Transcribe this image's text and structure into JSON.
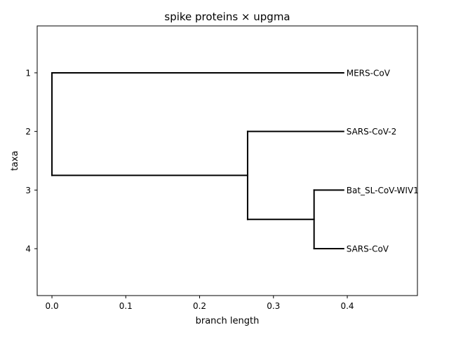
{
  "chart_data": {
    "type": "dendrogram",
    "title": "spike proteins × upgma",
    "xlabel": "branch length",
    "ylabel": "taxa",
    "xlim": [
      -0.02,
      0.495
    ],
    "ylim": [
      4.8,
      0.2
    ],
    "x_ticks": [
      0.0,
      0.1,
      0.2,
      0.3,
      0.4
    ],
    "x_tick_labels": [
      "0.0",
      "0.1",
      "0.2",
      "0.3",
      "0.4"
    ],
    "y_ticks": [
      1,
      2,
      3,
      4
    ],
    "y_tick_labels": [
      "1",
      "2",
      "3",
      "4"
    ],
    "grid": false,
    "legend": "none",
    "leaves": [
      {
        "name": "MERS-CoV",
        "y": 1,
        "x": 0.395
      },
      {
        "name": "SARS-CoV-2",
        "y": 2,
        "x": 0.395
      },
      {
        "name": "Bat_SL-CoV-WIV1",
        "y": 3,
        "x": 0.395
      },
      {
        "name": "SARS-CoV",
        "y": 4,
        "x": 0.395
      }
    ],
    "segments": [
      {
        "x1": 0.0,
        "y1": 1,
        "x2": 0.395,
        "y2": 1
      },
      {
        "x1": 0.0,
        "y1": 1,
        "x2": 0.0,
        "y2": 2.75
      },
      {
        "x1": 0.0,
        "y1": 2.75,
        "x2": 0.265,
        "y2": 2.75
      },
      {
        "x1": 0.265,
        "y1": 2,
        "x2": 0.265,
        "y2": 3.5
      },
      {
        "x1": 0.265,
        "y1": 2,
        "x2": 0.395,
        "y2": 2
      },
      {
        "x1": 0.265,
        "y1": 3.5,
        "x2": 0.355,
        "y2": 3.5
      },
      {
        "x1": 0.355,
        "y1": 3,
        "x2": 0.355,
        "y2": 4
      },
      {
        "x1": 0.355,
        "y1": 3,
        "x2": 0.395,
        "y2": 3
      },
      {
        "x1": 0.355,
        "y1": 4,
        "x2": 0.395,
        "y2": 4
      }
    ],
    "line_color": "#000000"
  }
}
